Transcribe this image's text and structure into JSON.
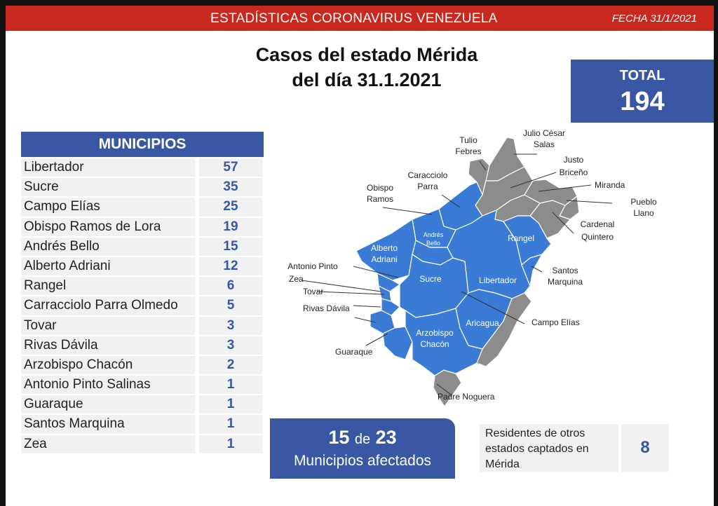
{
  "header": {
    "title": "ESTADÍSTICAS CORONAVIRUS VENEZUELA",
    "date": "FECHA 31/1/2021"
  },
  "main_title": {
    "line1": "Casos del estado Mérida",
    "line2": "del día 31.1.2021"
  },
  "total": {
    "label": "TOTAL",
    "value": "194"
  },
  "municipios": {
    "header": "MUNICIPIOS",
    "rows": [
      {
        "name": "Libertador",
        "value": "57"
      },
      {
        "name": "Sucre",
        "value": "35"
      },
      {
        "name": "Campo Elías",
        "value": "25"
      },
      {
        "name": "Obispo Ramos de Lora",
        "value": "19"
      },
      {
        "name": "Andrés Bello",
        "value": "15"
      },
      {
        "name": "Alberto Adriani",
        "value": "12"
      },
      {
        "name": "Rangel",
        "value": "6"
      },
      {
        "name": "Carracciolo Parra Olmedo",
        "value": "5"
      },
      {
        "name": "Tovar",
        "value": "3"
      },
      {
        "name": "Rivas Dávila",
        "value": "3"
      },
      {
        "name": "Arzobispo Chacón",
        "value": "2"
      },
      {
        "name": "Antonio Pinto Salinas",
        "value": "1"
      },
      {
        "name": "Guaraque",
        "value": "1"
      },
      {
        "name": "Santos Marquina",
        "value": "1"
      },
      {
        "name": "Zea",
        "value": "1"
      }
    ]
  },
  "map": {
    "colors": {
      "affected": "#3a7bd5",
      "unaffected": "#8c8c8c",
      "border": "#ffffff"
    },
    "labels": {
      "tulio_febres": [
        "Tulio",
        "Febres"
      ],
      "julio_cesar_salas": [
        "Julio César",
        "Salas"
      ],
      "justo_briceno": [
        "Justo",
        "Briceño"
      ],
      "miranda": "Miranda",
      "pueblo_llano": [
        "Pueblo",
        "Llano"
      ],
      "cardenal_quintero": [
        "Cardenal",
        "Quintero"
      ],
      "caracciolo_parra": [
        "Caracciolo",
        "Parra"
      ],
      "obispo_ramos": [
        "Obispo",
        "Ramos"
      ],
      "andres_bello": [
        "Andrés",
        "Bello"
      ],
      "rangel": "Rangel",
      "alberto_adriani": [
        "Alberto",
        "Adriani"
      ],
      "santos_marquina": [
        "Santos",
        "Marquina"
      ],
      "antonio_pinto": "Antonio Pinto",
      "zea": "Zea",
      "sucre": "Sucre",
      "libertador": "Libertador",
      "tovar": "Tovar",
      "rivas_davila": "Rivas Dávila",
      "aricagua": "Aricagua",
      "campo_elias": "Campo Elías",
      "arzobispo_chacon": [
        "Arzobispo",
        "Chacón"
      ],
      "guaraque": "Guaraque",
      "padre_noguera": "Padre Noguera"
    }
  },
  "affected": {
    "count": "15",
    "connector": "de",
    "of_total": "23",
    "label": "Municipios afectados"
  },
  "residents": {
    "label": [
      "Residentes de otros",
      "estados captados en",
      "Mérida"
    ],
    "value": "8"
  }
}
